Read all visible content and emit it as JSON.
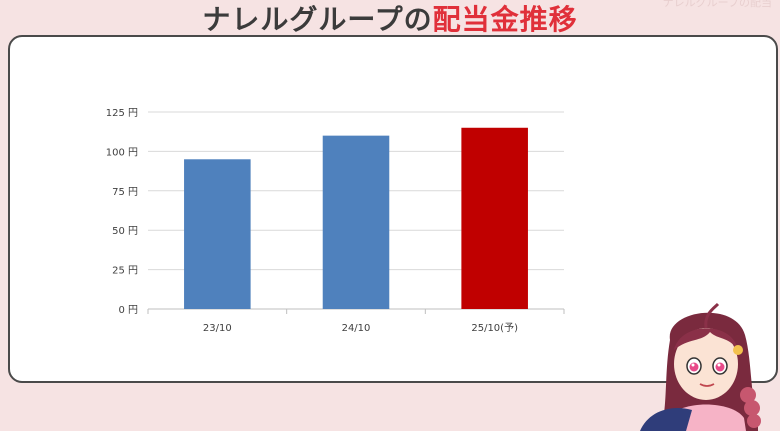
{
  "header": {
    "title_main": "ナレルグループの",
    "title_accent": "配当金推移",
    "watermark": "ナレルグループの配当"
  },
  "colors": {
    "actual_bar": "#4f81bd",
    "forecast_bar": "#c00000",
    "accent": "#e0303a"
  },
  "chart_data": {
    "type": "bar",
    "categories": [
      "23/10",
      "24/10",
      "25/10(予)"
    ],
    "values": [
      95,
      110,
      115
    ],
    "ytick_labels": [
      "0 円",
      "25 円",
      "50 円",
      "75 円",
      "100 円",
      "125 円"
    ],
    "yticks": [
      0,
      25,
      50,
      75,
      100,
      125
    ],
    "ylim": [
      0,
      125
    ],
    "grid": true,
    "forecast_index": 2,
    "title": "",
    "xlabel": "",
    "ylabel": ""
  }
}
